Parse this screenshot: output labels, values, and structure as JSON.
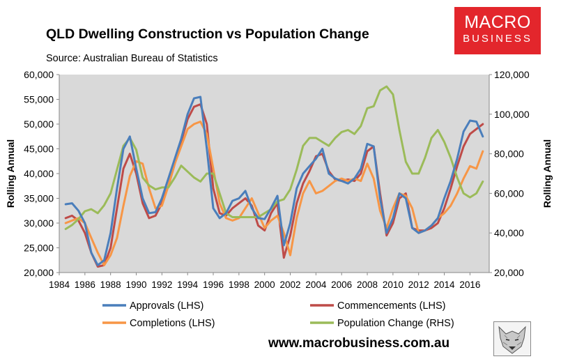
{
  "header": {
    "title": "QLD Dwelling Construction vs Population Change",
    "subtitle": "Source: Australian Bureau of Statistics",
    "logo_line1": "MACRO",
    "logo_line2": "BUSINESS",
    "logo_color": "#e3262c",
    "website": "www.macrobusiness.com.au"
  },
  "chart_data": {
    "type": "line",
    "title": "QLD Dwelling Construction vs Population Change",
    "subtitle": "Source: Australian Bureau of Statistics",
    "ylabel_left": "Rolling Annual",
    "ylabel_right": "Rolling Annual",
    "xlim": [
      1984,
      2017.5
    ],
    "ylim_left": [
      20000,
      60000
    ],
    "ylim_right": [
      20000,
      120000
    ],
    "x_ticks": [
      "1984",
      "1986",
      "1988",
      "1990",
      "1992",
      "1994",
      "1996",
      "1998",
      "2000",
      "2002",
      "2004",
      "2006",
      "2008",
      "2010",
      "2012",
      "2014",
      "2016"
    ],
    "y_ticks_left": [
      "20,000",
      "25,000",
      "30,000",
      "35,000",
      "40,000",
      "45,000",
      "50,000",
      "55,000",
      "60,000"
    ],
    "y_ticks_right": [
      "20,000",
      "40,000",
      "60,000",
      "80,000",
      "100,000",
      "120,000"
    ],
    "plot_background": "#d9d9d9",
    "grid": false,
    "legend_position": "bottom",
    "series": [
      {
        "name": "Approvals (LHS)",
        "axis": "left",
        "color": "#4a7ebb",
        "x": [
          1984.5,
          1985,
          1985.5,
          1986,
          1986.5,
          1987,
          1987.5,
          1988,
          1988.5,
          1989,
          1989.5,
          1990,
          1990.5,
          1991,
          1991.5,
          1992,
          1992.5,
          1993,
          1993.5,
          1994,
          1994.5,
          1995,
          1995.5,
          1996,
          1996.5,
          1997,
          1997.5,
          1998,
          1998.5,
          1999,
          1999.5,
          2000,
          2000.5,
          2001,
          2001.5,
          2002,
          2002.5,
          2003,
          2003.5,
          2004,
          2004.5,
          2005,
          2005.5,
          2006,
          2006.5,
          2007,
          2007.5,
          2008,
          2008.5,
          2009,
          2009.5,
          2010,
          2010.5,
          2011,
          2011.5,
          2012,
          2012.5,
          2013,
          2013.5,
          2014,
          2014.5,
          2015,
          2015.5,
          2016,
          2016.5,
          2017
        ],
        "y": [
          33800,
          34000,
          32500,
          30000,
          24000,
          21500,
          22500,
          28000,
          37000,
          45000,
          47500,
          41000,
          35000,
          32000,
          32200,
          35000,
          39000,
          43000,
          47000,
          52000,
          55200,
          55500,
          45000,
          33000,
          31000,
          32000,
          34500,
          35000,
          36500,
          33000,
          31000,
          30800,
          33000,
          35500,
          25500,
          30000,
          37000,
          40000,
          41500,
          43000,
          45000,
          40000,
          39000,
          38500,
          38000,
          39000,
          41000,
          46000,
          45500,
          35000,
          28000,
          31000,
          36000,
          35000,
          29000,
          28000,
          28500,
          29500,
          31000,
          35000,
          38500,
          43000,
          48500,
          50700,
          50500,
          47500
        ]
      },
      {
        "name": "Commencements (LHS)",
        "axis": "left",
        "color": "#be4b48",
        "x": [
          1984.5,
          1985,
          1985.5,
          1986,
          1986.5,
          1987,
          1987.5,
          1988,
          1988.5,
          1989,
          1989.5,
          1990,
          1990.5,
          1991,
          1991.5,
          1992,
          1992.5,
          1993,
          1993.5,
          1994,
          1994.5,
          1995,
          1995.5,
          1996,
          1996.5,
          1997,
          1997.5,
          1998,
          1998.5,
          1999,
          1999.5,
          2000,
          2000.5,
          2001,
          2001.5,
          2002,
          2002.5,
          2003,
          2003.5,
          2004,
          2004.5,
          2005,
          2005.5,
          2006,
          2006.5,
          2007,
          2007.5,
          2008,
          2008.5,
          2009,
          2009.5,
          2010,
          2010.5,
          2011,
          2011.5,
          2012,
          2012.5,
          2013,
          2013.5,
          2014,
          2014.5,
          2015,
          2015.5,
          2016,
          2016.5,
          2017
        ],
        "y": [
          31000,
          31500,
          30500,
          28000,
          24000,
          21200,
          21500,
          25000,
          33000,
          41000,
          44000,
          40000,
          34000,
          31000,
          31500,
          34000,
          37500,
          42000,
          46500,
          51000,
          53500,
          54000,
          50000,
          37000,
          32000,
          31500,
          33000,
          34000,
          35000,
          33500,
          29500,
          28500,
          32000,
          34000,
          23000,
          27500,
          34000,
          38000,
          40500,
          43500,
          44000,
          40500,
          38800,
          38500,
          38800,
          38500,
          40000,
          44500,
          45500,
          36000,
          27500,
          30000,
          35000,
          36000,
          29000,
          28500,
          28500,
          29000,
          30000,
          33000,
          37000,
          41500,
          45500,
          48000,
          49000,
          50000
        ]
      },
      {
        "name": "Completions (LHS)",
        "axis": "left",
        "color": "#f79646",
        "x": [
          1984.5,
          1985,
          1985.5,
          1986,
          1986.5,
          1987,
          1987.5,
          1988,
          1988.5,
          1989,
          1989.5,
          1990,
          1990.5,
          1991,
          1991.5,
          1992,
          1992.5,
          1993,
          1993.5,
          1994,
          1994.5,
          1995,
          1995.5,
          1996,
          1996.5,
          1997,
          1997.5,
          1998,
          1998.5,
          1999,
          1999.5,
          2000,
          2000.5,
          2001,
          2001.5,
          2002,
          2002.5,
          2003,
          2003.5,
          2004,
          2004.5,
          2005,
          2005.5,
          2006,
          2006.5,
          2007,
          2007.5,
          2008,
          2008.5,
          2009,
          2009.5,
          2010,
          2010.5,
          2011,
          2011.5,
          2012,
          2012.5,
          2013,
          2013.5,
          2014,
          2014.5,
          2015,
          2015.5,
          2016,
          2016.5,
          2017
        ],
        "y": [
          30000,
          30500,
          31000,
          30000,
          27000,
          24000,
          21500,
          23500,
          27000,
          33500,
          39500,
          42500,
          42000,
          37000,
          33000,
          33500,
          37500,
          42000,
          45500,
          49000,
          50000,
          50500,
          48000,
          41000,
          34000,
          31000,
          30500,
          31000,
          33000,
          35000,
          32000,
          29000,
          30500,
          31500,
          28000,
          23500,
          31000,
          36000,
          38500,
          36000,
          36500,
          37500,
          38500,
          39000,
          38500,
          39000,
          38500,
          42000,
          39000,
          32500,
          29000,
          33000,
          36000,
          35500,
          33000,
          28000,
          28500,
          29500,
          31000,
          32000,
          33500,
          36000,
          39000,
          41500,
          41000,
          44500
        ]
      },
      {
        "name": "Population Change (RHS)",
        "axis": "right",
        "color": "#9bbb59",
        "x": [
          1984.5,
          1985,
          1985.5,
          1986,
          1986.5,
          1987,
          1987.5,
          1988,
          1988.5,
          1989,
          1989.5,
          1990,
          1990.5,
          1991,
          1991.5,
          1992,
          1992.5,
          1993,
          1993.5,
          1994,
          1994.5,
          1995,
          1995.5,
          1996,
          1996.5,
          1997,
          1997.5,
          1998,
          1998.5,
          1999,
          1999.5,
          2000,
          2000.5,
          2001,
          2001.5,
          2002,
          2002.5,
          2003,
          2003.5,
          2004,
          2004.5,
          2005,
          2005.5,
          2006,
          2006.5,
          2007,
          2007.5,
          2008,
          2008.5,
          2009,
          2009.5,
          2010,
          2010.5,
          2011,
          2011.5,
          2012,
          2012.5,
          2013,
          2013.5,
          2014,
          2014.5,
          2015,
          2015.5,
          2016,
          2016.5,
          2017
        ],
        "y": [
          42000,
          44000,
          47000,
          51000,
          52000,
          50000,
          54000,
          60000,
          72000,
          84000,
          88000,
          82000,
          68000,
          64000,
          62000,
          63000,
          63000,
          68000,
          74000,
          71000,
          68000,
          66000,
          70000,
          70000,
          60000,
          50000,
          48000,
          48000,
          48000,
          48000,
          48000,
          50000,
          52000,
          56000,
          57000,
          62000,
          72000,
          84000,
          88000,
          88000,
          86000,
          84000,
          88000,
          91000,
          92000,
          90000,
          94000,
          103000,
          104000,
          112000,
          114000,
          110000,
          92000,
          76000,
          70000,
          70000,
          78000,
          88000,
          92000,
          86000,
          78000,
          68000,
          60000,
          58000,
          60000,
          66000
        ]
      }
    ]
  }
}
